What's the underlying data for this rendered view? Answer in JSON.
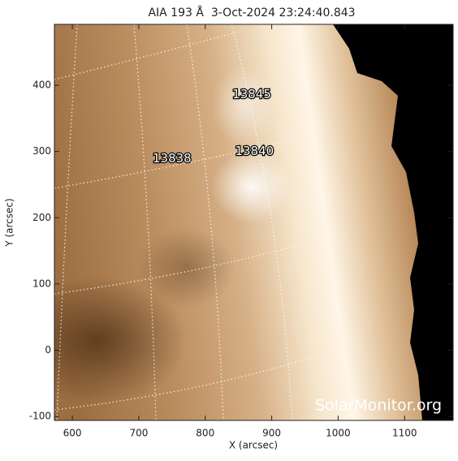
{
  "chart_data": {
    "type": "image",
    "title": "AIA 193 Å  3-Oct-2024 23:24:40.843",
    "x_label": "X (arcsec)",
    "y_label": "Y (arcsec)",
    "xlim": [
      573,
      1173
    ],
    "ylim": [
      -106,
      492
    ],
    "xticks": [
      600,
      700,
      800,
      900,
      1000,
      1100
    ],
    "yticks": [
      -100,
      0,
      100,
      200,
      300,
      400
    ],
    "annotations": [
      {
        "text": "13845",
        "x": 870,
        "y": 386
      },
      {
        "text": "13840",
        "x": 874,
        "y": 300
      },
      {
        "text": "13838",
        "x": 750,
        "y": 289
      }
    ],
    "watermark": "SolarMonitor.org"
  }
}
